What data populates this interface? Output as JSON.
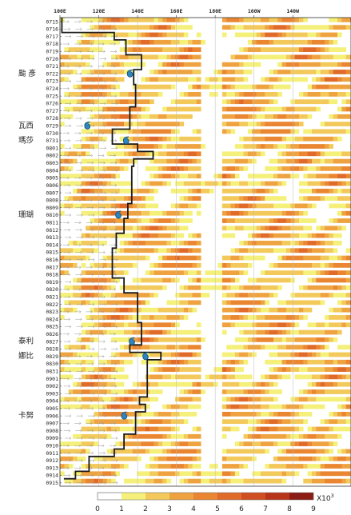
{
  "chart_data": {
    "type": "heatmap",
    "x_axis": {
      "ticks": [
        "100E",
        "120E",
        "140E",
        "160E",
        "180E",
        "160W",
        "140W"
      ],
      "range": [
        100,
        250
      ]
    },
    "y_axis": {
      "dates": [
        "0715",
        "0716",
        "0717",
        "0718",
        "0719",
        "0720",
        "0721",
        "0722",
        "0723",
        "0724",
        "0725",
        "0726",
        "0727",
        "0728",
        "0729",
        "0730",
        "0731",
        "0801",
        "0802",
        "0803",
        "0804",
        "0805",
        "0806",
        "0807",
        "0808",
        "0809",
        "0810",
        "0811",
        "0812",
        "0813",
        "0814",
        "0815",
        "0816",
        "0817",
        "0818",
        "0819",
        "0820",
        "0821",
        "0822",
        "0823",
        "0824",
        "0825",
        "0826",
        "0827",
        "0828",
        "0829",
        "0830",
        "0831",
        "0901",
        "0902",
        "0903",
        "0904",
        "0905",
        "0906",
        "0907",
        "0908",
        "0909",
        "0910",
        "0911",
        "0912",
        "0913",
        "0914",
        "0915"
      ]
    },
    "colorbar": {
      "levels": [
        "0",
        "1",
        "2",
        "3",
        "4",
        "5",
        "6",
        "7",
        "8",
        "9"
      ],
      "unit_label": "X10",
      "unit_exponent": "3",
      "colors": [
        "#ffffff",
        "#f4f07a",
        "#f2c95a",
        "#efa340",
        "#ea8631",
        "#e06a2a",
        "#d14e22",
        "#b8351b",
        "#8c1d14"
      ]
    },
    "annotations": [
      {
        "label": "颱 彥",
        "date": "0722",
        "lon": 136
      },
      {
        "label": "瓦西",
        "date": "0729",
        "lon": 114
      },
      {
        "label": "瑪莎",
        "date": "0731",
        "lon": 134
      },
      {
        "label": "珊瑚",
        "date": "0810",
        "lon": 130
      },
      {
        "label": "泰利",
        "date": "0827",
        "lon": 137
      },
      {
        "label": "娜比",
        "date": "0829",
        "lon": 144
      },
      {
        "label": "卡努",
        "date": "0906",
        "lon": 133
      }
    ],
    "boundary_line": {
      "points": [
        [
          101,
          0
        ],
        [
          101,
          2
        ],
        [
          128,
          2
        ],
        [
          128,
          3
        ],
        [
          134,
          3
        ],
        [
          134,
          5
        ],
        [
          142,
          5
        ],
        [
          142,
          7
        ],
        [
          138,
          7
        ],
        [
          138,
          9
        ],
        [
          139,
          9
        ],
        [
          139,
          12
        ],
        [
          136,
          12
        ],
        [
          136,
          15
        ],
        [
          127,
          15
        ],
        [
          127,
          17
        ],
        [
          140,
          17
        ],
        [
          140,
          18
        ],
        [
          148,
          18
        ],
        [
          148,
          19
        ],
        [
          138,
          19
        ],
        [
          138,
          20
        ],
        [
          137,
          20
        ],
        [
          137,
          25
        ],
        [
          135,
          25
        ],
        [
          135,
          27
        ],
        [
          133,
          27
        ],
        [
          133,
          29
        ],
        [
          129,
          29
        ],
        [
          129,
          31
        ],
        [
          127,
          31
        ],
        [
          127,
          35
        ],
        [
          133,
          35
        ],
        [
          133,
          37
        ],
        [
          140,
          37
        ],
        [
          140,
          41
        ],
        [
          142,
          41
        ],
        [
          142,
          44
        ],
        [
          136,
          44
        ],
        [
          136,
          45
        ],
        [
          152,
          45
        ],
        [
          152,
          46
        ],
        [
          145,
          46
        ],
        [
          145,
          51
        ],
        [
          141,
          51
        ],
        [
          141,
          52
        ],
        [
          144,
          52
        ],
        [
          144,
          53
        ],
        [
          139,
          53
        ],
        [
          139,
          56
        ],
        [
          133,
          56
        ],
        [
          133,
          58
        ],
        [
          128,
          58
        ],
        [
          128,
          59
        ],
        [
          115,
          59
        ],
        [
          115,
          61
        ],
        [
          108,
          61
        ],
        [
          108,
          62
        ],
        [
          102,
          62
        ]
      ]
    }
  }
}
